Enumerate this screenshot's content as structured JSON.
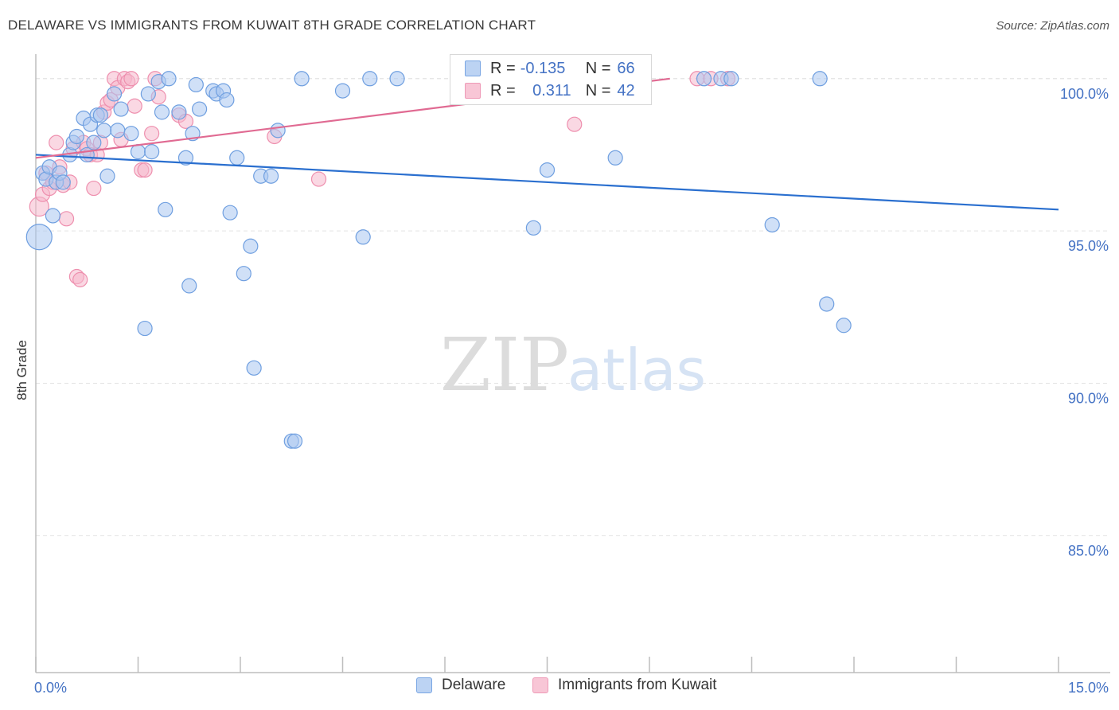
{
  "title": "DELAWARE VS IMMIGRANTS FROM KUWAIT 8TH GRADE CORRELATION CHART",
  "source": "Source: ZipAtlas.com",
  "watermark": {
    "zip": "ZIP",
    "atlas": "atlas"
  },
  "legend": {
    "rows": [
      {
        "r_label": "R =",
        "r_value": "-0.135",
        "n_label": "N =",
        "n_value": "66"
      },
      {
        "r_label": "R =",
        "r_value": "0.311",
        "n_label": "N =",
        "n_value": "42"
      }
    ]
  },
  "bottom_legend": {
    "series1": "Delaware",
    "series2": "Immigrants from Kuwait"
  },
  "colors": {
    "blue_fill": "#a9c7f0",
    "blue_stroke": "#6f9fe0",
    "blue_line": "#2a6fcf",
    "pink_fill": "#f6b8cc",
    "pink_stroke": "#ee8fae",
    "pink_line": "#e06a92",
    "axis_text": "#4472c4",
    "grid": "#e3e3e3"
  },
  "chart_data": {
    "type": "scatter",
    "title": "DELAWARE VS IMMIGRANTS FROM KUWAIT 8TH GRADE CORRELATION CHART",
    "xlabel": "",
    "ylabel": "8th Grade",
    "xlim": [
      0,
      15
    ],
    "ylim": [
      80.5,
      100.7
    ],
    "x_tick_labels": [
      "0.0%",
      "15.0%"
    ],
    "y_ticks": [
      85,
      90,
      95,
      100
    ],
    "y_tick_labels": [
      "85.0%",
      "90.0%",
      "95.0%",
      "100.0%"
    ],
    "series": [
      {
        "name": "Delaware",
        "r": -0.135,
        "n": 66,
        "trend": {
          "x": [
            0,
            15
          ],
          "y": [
            97.5,
            95.7
          ]
        },
        "points": [
          [
            0.05,
            94.8
          ],
          [
            0.1,
            96.9
          ],
          [
            0.15,
            96.7
          ],
          [
            0.2,
            97.1
          ],
          [
            0.25,
            95.5
          ],
          [
            0.3,
            96.6
          ],
          [
            0.35,
            96.9
          ],
          [
            0.4,
            96.6
          ],
          [
            0.5,
            97.5
          ],
          [
            0.55,
            97.9
          ],
          [
            0.6,
            98.1
          ],
          [
            0.7,
            98.7
          ],
          [
            0.75,
            97.5
          ],
          [
            0.8,
            98.5
          ],
          [
            0.85,
            97.9
          ],
          [
            0.9,
            98.8
          ],
          [
            0.95,
            98.8
          ],
          [
            1.0,
            98.3
          ],
          [
            1.05,
            96.8
          ],
          [
            1.15,
            99.5
          ],
          [
            1.2,
            98.3
          ],
          [
            1.25,
            99.0
          ],
          [
            1.4,
            98.2
          ],
          [
            1.5,
            97.6
          ],
          [
            1.6,
            91.8
          ],
          [
            1.65,
            99.5
          ],
          [
            1.7,
            97.6
          ],
          [
            1.8,
            99.9
          ],
          [
            1.85,
            98.9
          ],
          [
            1.95,
            100.0
          ],
          [
            1.9,
            95.7
          ],
          [
            2.1,
            98.9
          ],
          [
            2.2,
            97.4
          ],
          [
            2.25,
            93.2
          ],
          [
            2.3,
            98.2
          ],
          [
            2.35,
            99.8
          ],
          [
            2.4,
            99.0
          ],
          [
            2.6,
            99.6
          ],
          [
            2.65,
            99.5
          ],
          [
            2.75,
            99.6
          ],
          [
            2.8,
            99.3
          ],
          [
            2.85,
            95.6
          ],
          [
            2.95,
            97.4
          ],
          [
            3.15,
            94.5
          ],
          [
            3.05,
            93.6
          ],
          [
            3.2,
            90.5
          ],
          [
            3.3,
            96.8
          ],
          [
            3.45,
            96.8
          ],
          [
            3.55,
            98.3
          ],
          [
            3.75,
            88.1
          ],
          [
            3.8,
            88.1
          ],
          [
            3.9,
            100.0
          ],
          [
            4.5,
            99.6
          ],
          [
            4.8,
            94.8
          ],
          [
            4.9,
            100.0
          ],
          [
            5.3,
            100.0
          ],
          [
            7.3,
            95.1
          ],
          [
            7.5,
            97.0
          ],
          [
            8.5,
            97.4
          ],
          [
            9.8,
            100.0
          ],
          [
            10.05,
            100.0
          ],
          [
            10.2,
            100.0
          ],
          [
            10.8,
            95.2
          ],
          [
            11.5,
            100.0
          ],
          [
            11.6,
            92.6
          ],
          [
            11.85,
            91.9
          ]
        ]
      },
      {
        "name": "Immigrants from Kuwait",
        "r": 0.311,
        "n": 42,
        "trend": {
          "x": [
            0,
            9.3
          ],
          "y": [
            97.4,
            100.0
          ]
        },
        "points": [
          [
            0.05,
            95.8
          ],
          [
            0.1,
            96.2
          ],
          [
            0.15,
            96.9
          ],
          [
            0.2,
            96.4
          ],
          [
            0.25,
            96.6
          ],
          [
            0.3,
            97.9
          ],
          [
            0.35,
            97.1
          ],
          [
            0.4,
            96.5
          ],
          [
            0.45,
            95.4
          ],
          [
            0.5,
            96.6
          ],
          [
            0.55,
            97.7
          ],
          [
            0.6,
            93.5
          ],
          [
            0.65,
            93.4
          ],
          [
            0.7,
            97.9
          ],
          [
            0.75,
            97.7
          ],
          [
            0.8,
            97.5
          ],
          [
            0.85,
            96.4
          ],
          [
            0.9,
            97.5
          ],
          [
            0.95,
            97.9
          ],
          [
            1.0,
            98.9
          ],
          [
            1.05,
            99.2
          ],
          [
            1.1,
            99.3
          ],
          [
            1.15,
            100.0
          ],
          [
            1.2,
            99.7
          ],
          [
            1.25,
            98.0
          ],
          [
            1.3,
            100.0
          ],
          [
            1.35,
            99.9
          ],
          [
            1.4,
            100.0
          ],
          [
            1.45,
            99.1
          ],
          [
            1.55,
            97.0
          ],
          [
            1.6,
            97.0
          ],
          [
            1.7,
            98.2
          ],
          [
            1.75,
            100.0
          ],
          [
            1.8,
            99.4
          ],
          [
            2.1,
            98.8
          ],
          [
            2.2,
            98.6
          ],
          [
            3.5,
            98.1
          ],
          [
            4.15,
            96.7
          ],
          [
            7.9,
            98.5
          ],
          [
            9.7,
            100.0
          ],
          [
            9.9,
            100.0
          ],
          [
            10.15,
            100.0
          ]
        ]
      }
    ]
  }
}
